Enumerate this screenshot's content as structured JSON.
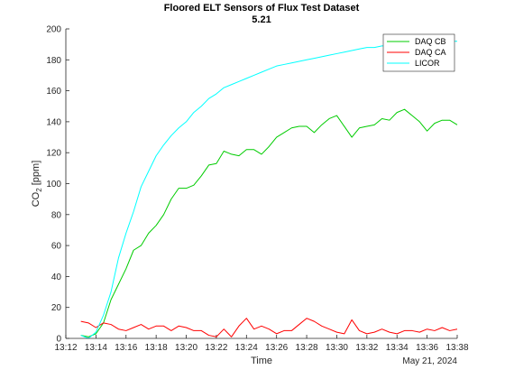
{
  "chart_data": {
    "type": "line",
    "title": "Floored ELT Sensors of Flux Test Dataset",
    "subtitle": "5.21",
    "xlabel": "Time",
    "ylabel_main": "CO",
    "ylabel_sub": "2",
    "ylabel_unit": " [ppm]",
    "x_secondary_label": "May 21, 2024",
    "x_ticks": [
      "13:12",
      "13:14",
      "13:16",
      "13:18",
      "13:20",
      "13:22",
      "13:24",
      "13:26",
      "13:28",
      "13:30",
      "13:32",
      "13:34",
      "13:36",
      "13:38"
    ],
    "xlim": [
      "13:12",
      "13:38"
    ],
    "ylim": [
      0,
      200
    ],
    "y_ticks": [
      0,
      20,
      40,
      60,
      80,
      100,
      120,
      140,
      160,
      180,
      200
    ],
    "legend_position": "top-right",
    "grid": false,
    "series": [
      {
        "name": "DAQ CB",
        "color": "#00cc00",
        "x": [
          "13:13",
          "13:13.5",
          "13:14",
          "13:14.5",
          "13:15",
          "13:15.5",
          "13:16",
          "13:16.5",
          "13:17",
          "13:17.5",
          "13:18",
          "13:18.5",
          "13:19",
          "13:19.5",
          "13:20",
          "13:20.5",
          "13:21",
          "13:21.5",
          "13:22",
          "13:22.5",
          "13:23",
          "13:23.5",
          "13:24",
          "13:24.5",
          "13:25",
          "13:25.5",
          "13:26",
          "13:26.5",
          "13:27",
          "13:27.5",
          "13:28",
          "13:28.5",
          "13:29",
          "13:29.5",
          "13:30",
          "13:30.5",
          "13:31",
          "13:31.5",
          "13:32",
          "13:32.5",
          "13:33",
          "13:33.5",
          "13:34",
          "13:34.5",
          "13:35",
          "13:35.5",
          "13:36",
          "13:36.5",
          "13:37",
          "13:37.5",
          "13:38"
        ],
        "values": [
          2,
          1,
          3,
          10,
          25,
          35,
          45,
          57,
          60,
          68,
          73,
          80,
          90,
          97,
          97,
          99,
          105,
          112,
          113,
          121,
          119,
          118,
          122,
          122,
          119,
          124,
          130,
          133,
          136,
          137,
          137,
          133,
          138,
          142,
          144,
          137,
          130,
          136,
          137,
          138,
          142,
          141,
          146,
          148,
          144,
          140,
          134,
          139,
          141,
          141,
          138
        ]
      },
      {
        "name": "DAQ CA",
        "color": "#ff0000",
        "x": [
          "13:13",
          "13:13.5",
          "13:14",
          "13:14.5",
          "13:15",
          "13:15.5",
          "13:16",
          "13:16.5",
          "13:17",
          "13:17.5",
          "13:18",
          "13:18.5",
          "13:19",
          "13:19.5",
          "13:20",
          "13:20.5",
          "13:21",
          "13:21.5",
          "13:22",
          "13:22.5",
          "13:23",
          "13:23.5",
          "13:24",
          "13:24.5",
          "13:25",
          "13:25.5",
          "13:26",
          "13:26.5",
          "13:27",
          "13:27.5",
          "13:28",
          "13:28.5",
          "13:29",
          "13:29.5",
          "13:30",
          "13:30.5",
          "13:31",
          "13:31.5",
          "13:32",
          "13:32.5",
          "13:33",
          "13:33.5",
          "13:34",
          "13:34.5",
          "13:35",
          "13:35.5",
          "13:36",
          "13:36.5",
          "13:37",
          "13:37.5",
          "13:38"
        ],
        "values": [
          11,
          10,
          7,
          10,
          9,
          6,
          5,
          7,
          9,
          6,
          8,
          8,
          5,
          8,
          7,
          5,
          5,
          2,
          1,
          6,
          1,
          8,
          13,
          6,
          8,
          6,
          3,
          5,
          5,
          9,
          13,
          11,
          8,
          6,
          4,
          3,
          12,
          5,
          3,
          4,
          6,
          4,
          3,
          5,
          5,
          4,
          6,
          5,
          7,
          5,
          6
        ]
      },
      {
        "name": "LICOR",
        "color": "#00ffff",
        "x": [
          "13:13",
          "13:13.5",
          "13:14",
          "13:14.5",
          "13:15",
          "13:15.5",
          "13:16",
          "13:16.5",
          "13:17",
          "13:17.5",
          "13:18",
          "13:18.5",
          "13:19",
          "13:19.5",
          "13:20",
          "13:20.5",
          "13:21",
          "13:21.5",
          "13:22",
          "13:22.5",
          "13:23",
          "13:23.5",
          "13:24",
          "13:24.5",
          "13:25",
          "13:25.5",
          "13:26",
          "13:26.5",
          "13:27",
          "13:27.5",
          "13:28",
          "13:28.5",
          "13:29",
          "13:29.5",
          "13:30",
          "13:30.5",
          "13:31",
          "13:31.5",
          "13:32",
          "13:32.5",
          "13:33",
          "13:33.5",
          "13:34",
          "13:34.5",
          "13:35",
          "13:35.5",
          "13:36",
          "13:36.5",
          "13:37",
          "13:37.5",
          "13:38"
        ],
        "values": [
          2,
          0,
          4,
          15,
          30,
          52,
          68,
          82,
          98,
          108,
          118,
          125,
          131,
          136,
          140,
          146,
          150,
          155,
          158,
          162,
          164,
          166,
          168,
          170,
          172,
          174,
          176,
          177,
          178,
          179,
          180,
          181,
          182,
          183,
          184,
          185,
          186,
          187,
          188,
          188,
          189,
          189,
          190,
          190,
          190,
          191,
          191,
          191,
          192,
          192,
          192
        ]
      }
    ]
  }
}
